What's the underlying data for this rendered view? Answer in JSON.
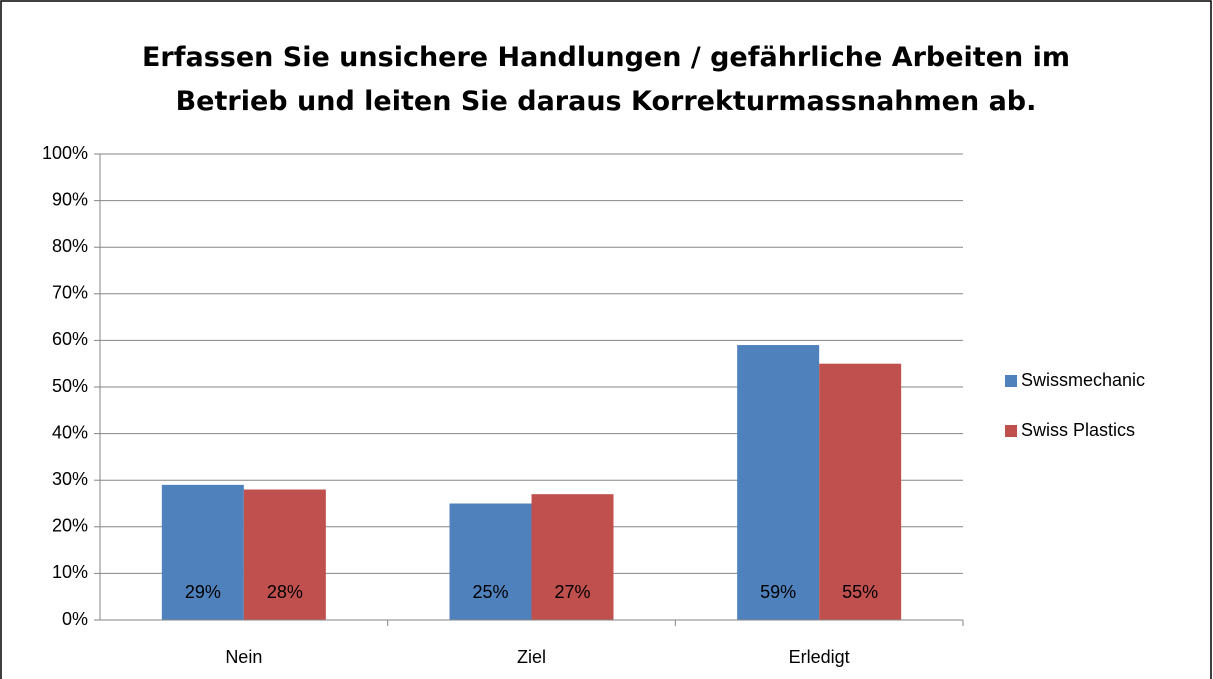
{
  "chart_data": {
    "type": "bar",
    "title": "Erfassen Sie unsichere Handlungen / gefährliche Arbeiten im Betrieb und leiten Sie daraus Korrekturmassnahmen ab.",
    "categories": [
      "Nein",
      "Ziel",
      "Erledigt"
    ],
    "series": [
      {
        "name": "Swissmechanic",
        "color": "#4f81bd",
        "values": [
          29,
          25,
          59
        ],
        "value_labels": [
          "29%",
          "25%",
          "59%"
        ]
      },
      {
        "name": "Swiss Plastics",
        "color": "#c0504d",
        "values": [
          28,
          27,
          55
        ],
        "value_labels": [
          "28%",
          "27%",
          "55%"
        ]
      }
    ],
    "ylim": [
      0,
      100
    ],
    "yticks": [
      {
        "value": 0,
        "label": "0%"
      },
      {
        "value": 10,
        "label": "10%"
      },
      {
        "value": 20,
        "label": "20%"
      },
      {
        "value": 30,
        "label": "30%"
      },
      {
        "value": 40,
        "label": "40%"
      },
      {
        "value": 50,
        "label": "50%"
      },
      {
        "value": 60,
        "label": "60%"
      },
      {
        "value": 70,
        "label": "70%"
      },
      {
        "value": 80,
        "label": "80%"
      },
      {
        "value": 90,
        "label": "90%"
      },
      {
        "value": 100,
        "label": "100%"
      }
    ],
    "grid": true,
    "legend": "right"
  }
}
